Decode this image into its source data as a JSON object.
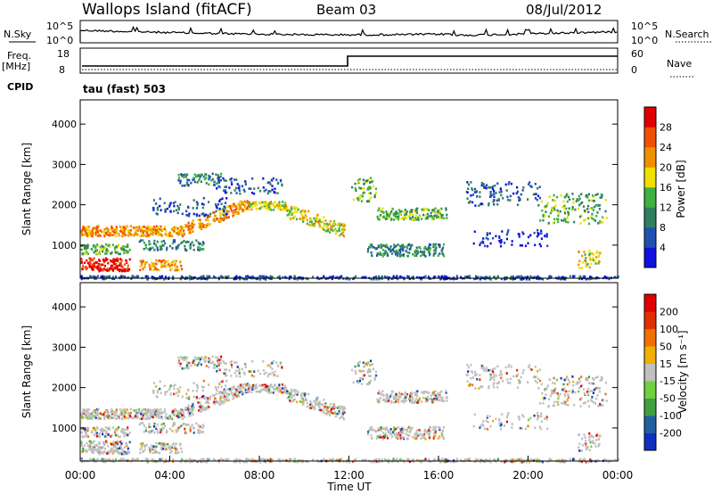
{
  "header": {
    "station": "Wallops Island (fitACF)",
    "beam": "Beam 03",
    "date": "08/Jul/2012"
  },
  "top_panels": {
    "nsky_label": "N.Sky",
    "nsky_ticks": [
      "10^5",
      "10^0"
    ],
    "nsearch_label": "N.Search",
    "nsearch_ticks": [
      "10^5",
      "10^0"
    ],
    "freq_label_1": "Freq.",
    "freq_label_2": "[MHz]",
    "freq_ticks": [
      "18",
      "8"
    ],
    "nave_label": "Nave",
    "nave_ticks": [
      "60",
      "0"
    ],
    "cpid_label": "CPID",
    "cpid_value": "tau (fast) 503"
  },
  "chart_data": [
    {
      "type": "heatmap",
      "name": "power",
      "xlabel": "",
      "ylabel": "Slant Range [km]",
      "xlim": [
        0,
        24
      ],
      "ylim": [
        180,
        4600
      ],
      "yticks": [
        "1000",
        "2000",
        "3000",
        "4000"
      ],
      "colorbar": {
        "label": "Power [dB]",
        "ticks": [
          "4",
          "8",
          "12",
          "16",
          "20",
          "24",
          "28"
        ],
        "colors": [
          "#1010e0",
          "#2050b0",
          "#308060",
          "#40b040",
          "#f0e000",
          "#f09000",
          "#f05000",
          "#e00000"
        ]
      }
    },
    {
      "type": "heatmap",
      "name": "velocity",
      "xlabel": "Time UT",
      "ylabel": "Slant Range [km]",
      "xlim": [
        0,
        24
      ],
      "ylim": [
        180,
        4600
      ],
      "xticks": [
        "00:00",
        "04:00",
        "08:00",
        "12:00",
        "16:00",
        "20:00",
        "00:00"
      ],
      "yticks": [
        "1000",
        "2000",
        "3000",
        "4000"
      ],
      "colorbar": {
        "label": "Velocity [m s⁻¹]",
        "ticks": [
          "200",
          "100",
          "50",
          "15",
          "-15",
          "-50",
          "-100",
          "-200"
        ],
        "colors": [
          "#1030c0",
          "#2060a0",
          "#40a040",
          "#70d040",
          "#c0c0c0",
          "#f0b000",
          "#f07000",
          "#e03000",
          "#e00000"
        ]
      }
    }
  ]
}
